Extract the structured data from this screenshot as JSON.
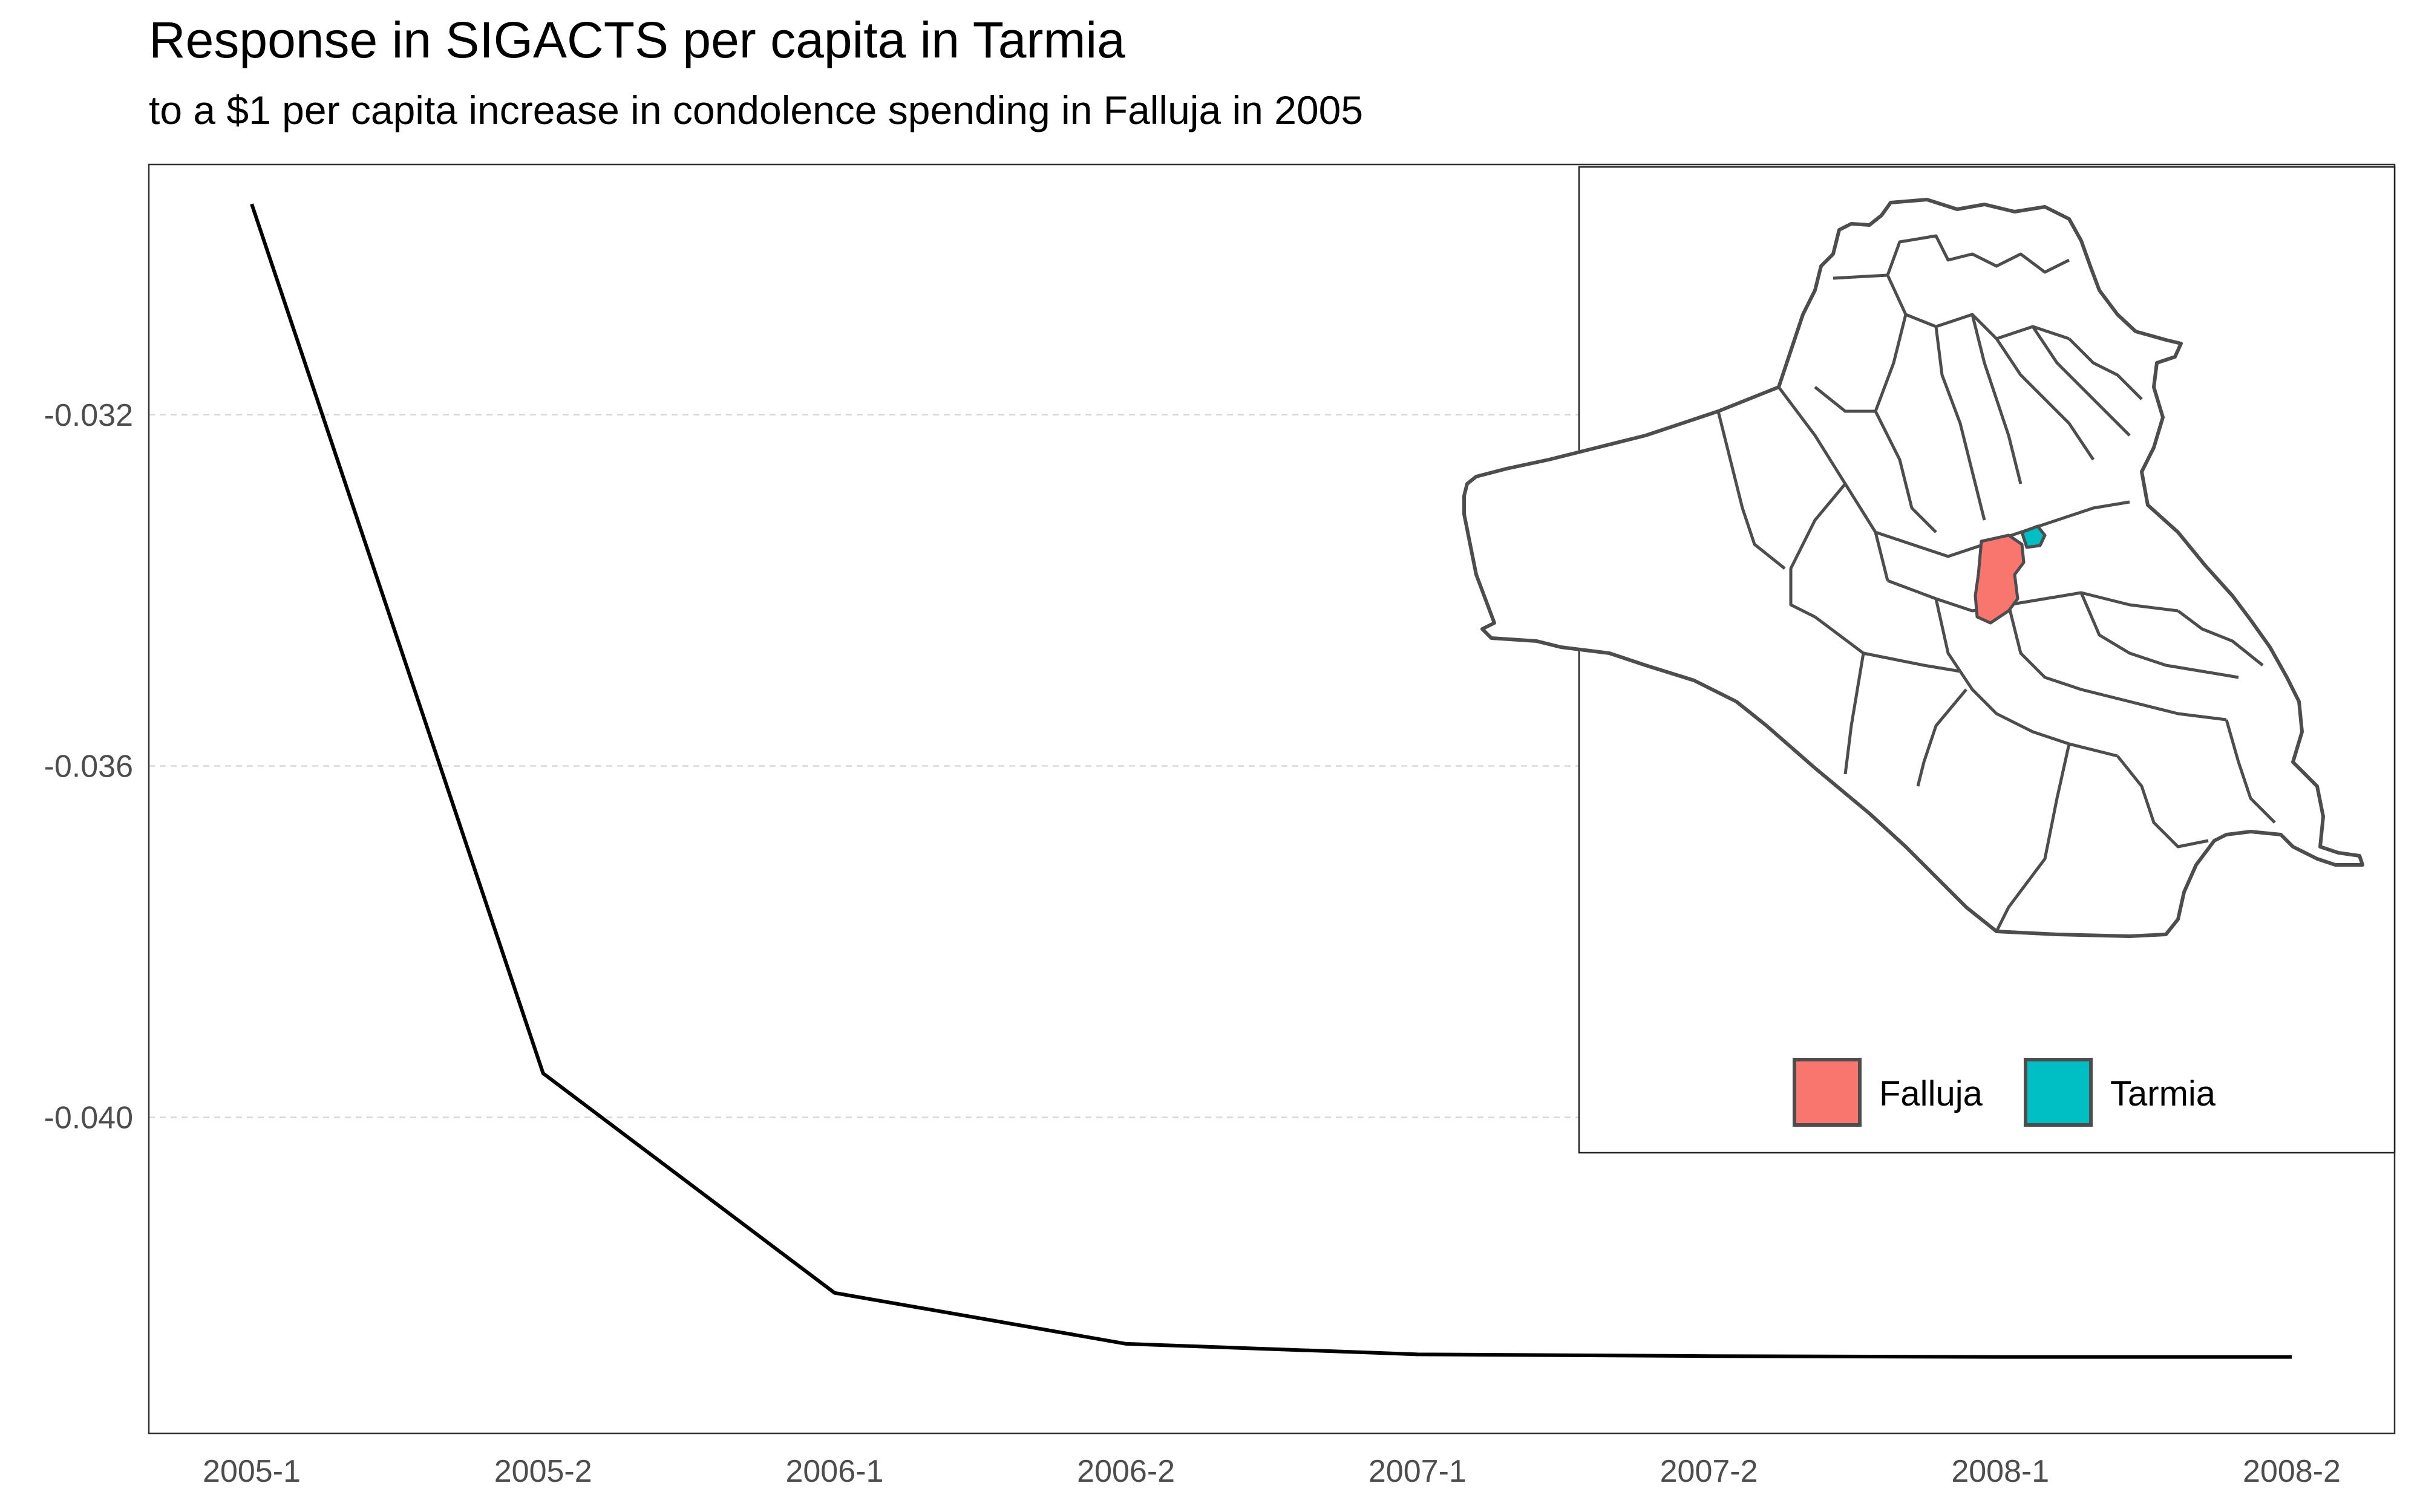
{
  "chart_data": {
    "type": "line",
    "title": "Response in SIGACTS per capita in Tarmia",
    "subtitle": "to a $1 per capita increase in condolence spending in Falluja in 2005",
    "xlabel": "",
    "ylabel": "",
    "categories": [
      "2005-1",
      "2005-2",
      "2006-1",
      "2006-2",
      "2007-1",
      "2007-2",
      "2008-1",
      "2008-2"
    ],
    "series": [
      {
        "values": [
          -0.0296,
          -0.0395,
          -0.042,
          -0.04258,
          -0.0427,
          -0.04272,
          -0.04273,
          -0.04273
        ],
        "color": "#000000"
      }
    ],
    "yticks": [
      -0.032,
      -0.036,
      -0.04
    ],
    "ytick_labels": [
      "-0.032",
      "-0.036",
      "-0.040"
    ],
    "ylim": [
      -0.0436,
      -0.02915
    ],
    "grid": "horizontal dashed major only",
    "inset_map": {
      "description_free": true,
      "legend": [
        {
          "label": "Falluja",
          "color": "#F8766D"
        },
        {
          "label": "Tarmia",
          "color": "#00BFC4"
        }
      ],
      "legend_position": "bottom"
    }
  }
}
